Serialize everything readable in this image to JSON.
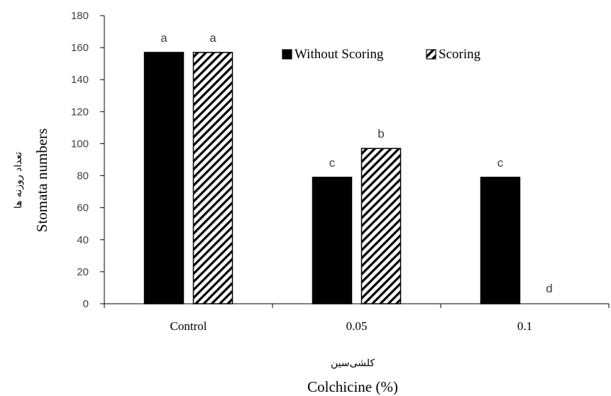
{
  "chart_data": {
    "type": "bar",
    "categories": [
      "Control",
      "0.05",
      "0.1"
    ],
    "series": [
      {
        "name": "Without Scoring",
        "fill": "solid",
        "color": "#000000",
        "values": [
          157,
          79,
          79
        ],
        "labels": [
          "a",
          "c",
          "c"
        ]
      },
      {
        "name": "Scoring",
        "fill": "hatched",
        "color": "#000000",
        "values": [
          157,
          97,
          0
        ],
        "labels": [
          "a",
          "b",
          "d"
        ]
      }
    ],
    "ylim": [
      0,
      180
    ],
    "yticks": [
      0,
      20,
      40,
      60,
      80,
      100,
      120,
      140,
      160,
      180
    ],
    "ylabel": "Stomata numbers",
    "ylabel_fa": "تعداد روزنه ها",
    "xlabel": "Colchicine (%)",
    "xlabel_fa": "کلشی‌سین",
    "legend_position": "top-center",
    "grid": false
  }
}
